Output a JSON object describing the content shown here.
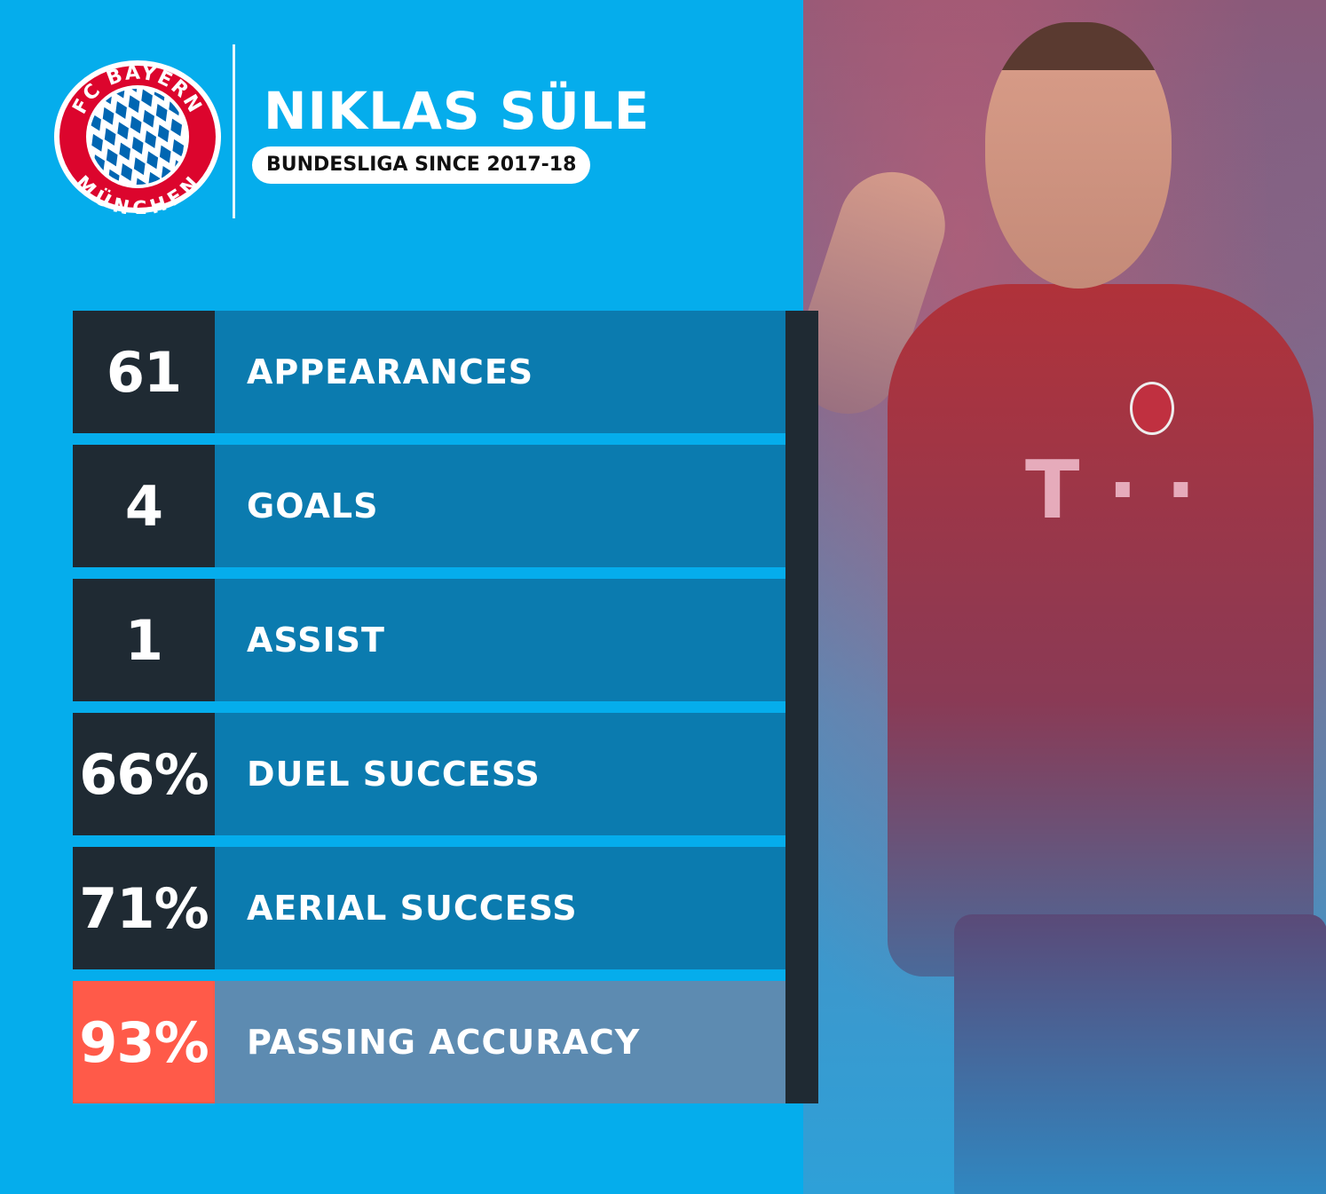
{
  "header": {
    "club_logo": {
      "top_text": "FC BAYERN",
      "bottom_text": "MÜNCHEN",
      "colors": {
        "ring": "#dc052d",
        "diamond_blue": "#0066b2"
      }
    },
    "player_name": "NIKLAS SÜLE",
    "subtitle": "BUNDESLIGA SINCE 2017-18"
  },
  "stats": [
    {
      "value": "61",
      "label": "APPEARANCES"
    },
    {
      "value": "4",
      "label": "GOALS"
    },
    {
      "value": "1",
      "label": "ASSIST"
    },
    {
      "value": "66%",
      "label": "DUEL SUCCESS"
    },
    {
      "value": "71%",
      "label": "AERIAL SUCCESS"
    },
    {
      "value": "93%",
      "label": "PASSING ACCURACY",
      "highlight": true
    }
  ],
  "colors": {
    "background": "#05adec",
    "value_box": "#1f2a33",
    "label_box": "#0b7baf",
    "highlight_value": "#ff5a49",
    "highlight_label": "#5d8bb1"
  },
  "photo": {
    "subject": "player-celebrating-photo"
  }
}
